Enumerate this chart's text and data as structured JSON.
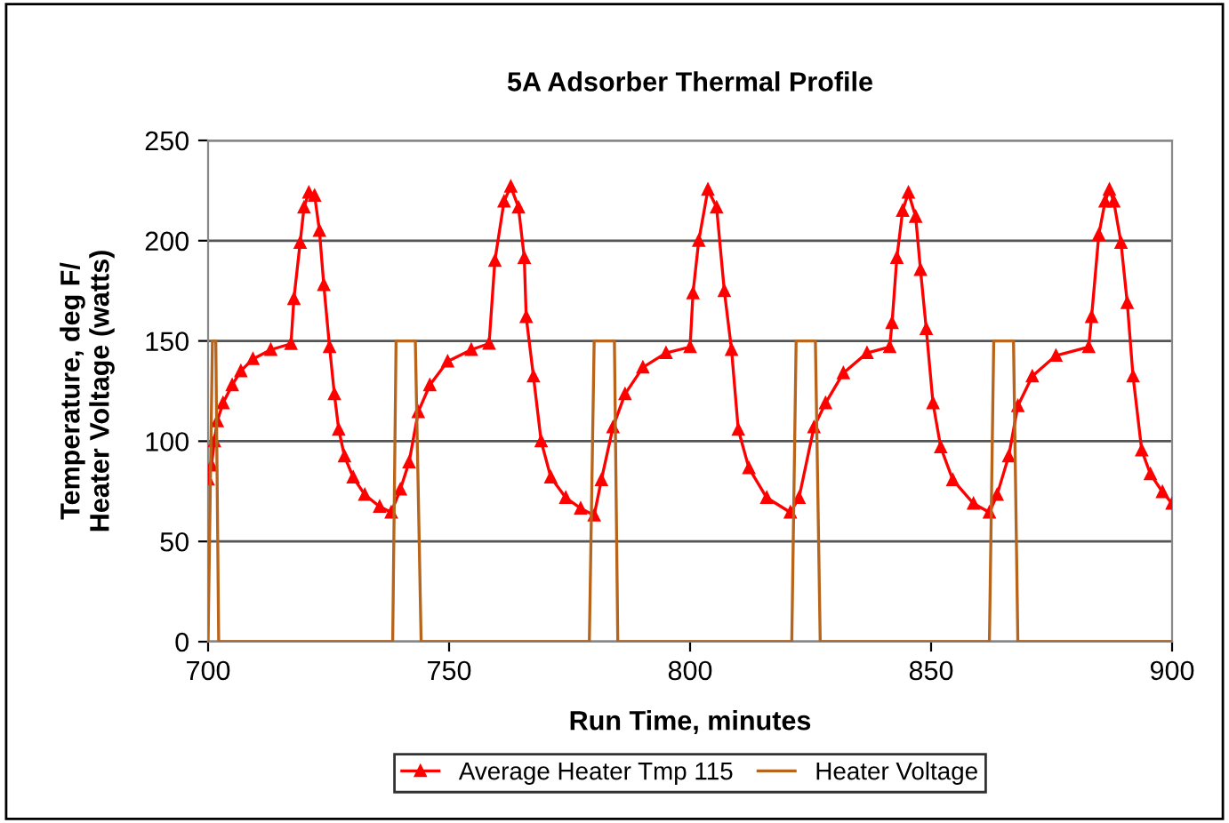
{
  "chart_data": {
    "type": "line",
    "title": "5A Adsorber Thermal Profile",
    "xlabel": "Run Time, minutes",
    "ylabel": "Temperature, deg F/\nHeater Voltage (watts)",
    "xlim": [
      700,
      900
    ],
    "xticks": [
      700,
      750,
      800,
      850,
      900
    ],
    "ylim": [
      0,
      250
    ],
    "yticks": [
      0,
      50,
      100,
      150,
      200,
      250
    ],
    "grid": "y",
    "legend": "bottom",
    "series": [
      {
        "name": "Average Heater Tmp 115",
        "color": "#ff0000",
        "marker": "triangle",
        "x": [
          700,
          700.7,
          701.3,
          701.9,
          703.1,
          705,
          706.8,
          709.3,
          713,
          717.2,
          717.8,
          719.1,
          719.9,
          720.9,
          722.1,
          723.1,
          724,
          725.2,
          726.2,
          727.1,
          728.3,
          730.1,
          732.5,
          735.6,
          738,
          739.9,
          741.7,
          743.6,
          746,
          749.7,
          754.6,
          758.3,
          759.5,
          761.4,
          762.8,
          764.4,
          765.6,
          766,
          767.5,
          769.1,
          771.1,
          774.2,
          777.3,
          780.1,
          781.6,
          784,
          786.5,
          790.2,
          795,
          800,
          800.6,
          801.8,
          803.7,
          805.5,
          807.1,
          808.6,
          810,
          812.2,
          815.9,
          820.8,
          822.6,
          825.7,
          828.1,
          831.8,
          836.7,
          841.4,
          841.9,
          842.9,
          844.1,
          845.3,
          846.8,
          847.8,
          849,
          850.4,
          852,
          854.5,
          858.8,
          862.1,
          863.7,
          866.1,
          868,
          871,
          875.9,
          882.7,
          883.3,
          884.8,
          886.1,
          887,
          887.9,
          889.4,
          890.7,
          891.9,
          893.7,
          895.5,
          898,
          900
        ],
        "values": [
          81,
          88,
          100,
          110,
          119,
          128,
          135,
          141,
          145.6,
          148.6,
          171,
          199,
          216.6,
          224,
          222.5,
          205,
          178,
          147,
          123.5,
          105.8,
          92.5,
          82,
          73.3,
          67.4,
          64.5,
          76,
          89.5,
          114.6,
          128,
          139.8,
          145.6,
          148.7,
          190,
          219.6,
          227,
          216.6,
          191.5,
          162,
          132.4,
          100,
          82,
          71.8,
          66.5,
          63,
          80.7,
          107,
          123.5,
          136.8,
          144,
          147,
          173.8,
          200,
          225.5,
          216.6,
          175,
          145.6,
          105.8,
          86.6,
          71.8,
          64.5,
          71.8,
          107,
          119,
          134,
          144,
          147,
          159,
          191.5,
          215,
          224,
          212,
          185.5,
          156,
          119,
          97,
          80.7,
          68.9,
          64.5,
          73.3,
          92.5,
          117.6,
          132.4,
          142.7,
          147,
          162,
          203,
          219.6,
          225.5,
          219.6,
          199,
          169,
          132.4,
          95.5,
          83.6,
          74.7,
          68.9
        ]
      },
      {
        "name": "Heater Voltage",
        "color": "#b8651b",
        "marker": "none",
        "x": [
          700,
          700.9,
          701.6,
          702.2,
          738.3,
          739,
          743,
          744.2,
          779.1,
          780.1,
          784.3,
          785,
          821.1,
          822,
          826,
          827,
          862.1,
          863,
          867.1,
          868,
          900
        ],
        "values": [
          0,
          150,
          150,
          0,
          0,
          150,
          150,
          0,
          0,
          150,
          150,
          0,
          0,
          150,
          150,
          0,
          0,
          150,
          150,
          0,
          0
        ]
      }
    ]
  }
}
